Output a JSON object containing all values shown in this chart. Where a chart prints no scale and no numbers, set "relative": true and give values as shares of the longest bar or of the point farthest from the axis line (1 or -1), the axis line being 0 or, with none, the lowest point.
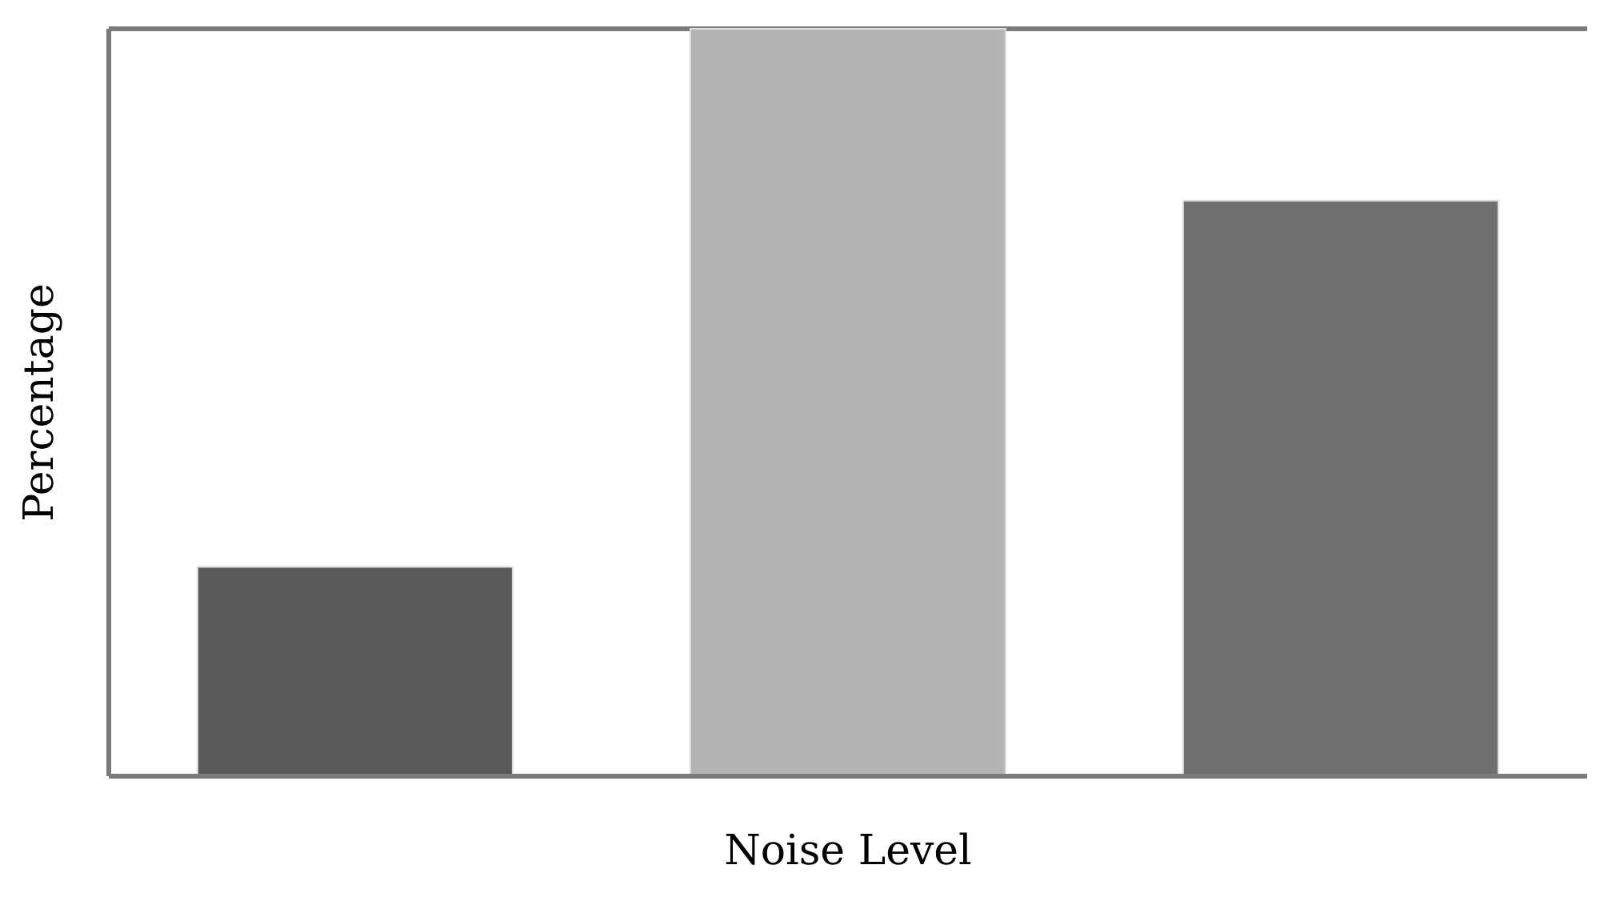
{
  "chart_data": {
    "type": "bar",
    "xlabel": "Noise Level",
    "ylabel": "Percentage",
    "categories": [
      null,
      null,
      null
    ],
    "values": [
      0.28,
      1,
      0.77
    ],
    "colors": [
      "#595959",
      "#b4b4b4",
      "#707070"
    ],
    "relative": true,
    "grid": "y"
  }
}
